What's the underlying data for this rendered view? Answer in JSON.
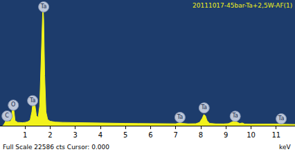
{
  "chart_data": {
    "type": "area",
    "title": "20111017-45bar-Ta+2,5W-AF(1)",
    "x_label": "keV",
    "footer": "Full Scale 22586 cts Cursor: 0.000",
    "color": "#f2f21c",
    "grid": false,
    "tick_labels": "x",
    "xlim": [
      0,
      11.75
    ],
    "xticks": [
      1,
      2,
      3,
      4,
      5,
      6,
      7,
      8,
      9,
      10,
      11
    ],
    "ylim": [
      0,
      22586
    ],
    "x": [
      0.1,
      0.15,
      0.2,
      0.25,
      0.28,
      0.32,
      0.38,
      0.44,
      0.48,
      0.52,
      0.56,
      0.6,
      0.7,
      0.8,
      0.9,
      1.0,
      1.1,
      1.2,
      1.27,
      1.33,
      1.38,
      1.45,
      1.52,
      1.58,
      1.64,
      1.68,
      1.71,
      1.74,
      1.78,
      1.83,
      1.9,
      2.0,
      2.2,
      2.5,
      3.0,
      3.5,
      4.0,
      4.5,
      5.0,
      5.5,
      6.0,
      6.5,
      7.0,
      7.1,
      7.17,
      7.25,
      7.5,
      7.8,
      7.95,
      8.05,
      8.12,
      8.18,
      8.25,
      8.35,
      8.6,
      8.9,
      9.1,
      9.25,
      9.32,
      9.4,
      9.55,
      9.65,
      9.75,
      10.0,
      10.5,
      10.9,
      11.1,
      11.2,
      11.3,
      11.75
    ],
    "values": [
      0,
      200,
      600,
      1300,
      1500,
      1100,
      700,
      900,
      2200,
      3900,
      2500,
      900,
      600,
      550,
      550,
      600,
      700,
      1000,
      2500,
      5000,
      4200,
      1800,
      1500,
      3500,
      12000,
      20000,
      21900,
      19000,
      9000,
      2500,
      1100,
      800,
      650,
      600,
      550,
      520,
      480,
      450,
      420,
      400,
      380,
      360,
      350,
      450,
      600,
      420,
      340,
      360,
      600,
      1300,
      2000,
      1800,
      900,
      420,
      330,
      320,
      380,
      700,
      850,
      750,
      400,
      500,
      300,
      280,
      260,
      250,
      300,
      330,
      260,
      230
    ],
    "peak_labels": [
      {
        "label": "C",
        "x": 0.28,
        "y": 1740
      },
      {
        "label": "O",
        "x": 0.53,
        "y": 3700
      },
      {
        "label": "Ta",
        "x": 1.3,
        "y": 4500
      },
      {
        "label": "Ta",
        "x": 1.74,
        "y": 21350
      },
      {
        "label": "Ta",
        "x": 7.17,
        "y": 1500
      },
      {
        "label": "Ta",
        "x": 8.13,
        "y": 3200
      },
      {
        "label": "Ta",
        "x": 9.37,
        "y": 1700
      },
      {
        "label": "Ta",
        "x": 11.2,
        "y": 1240
      }
    ]
  }
}
